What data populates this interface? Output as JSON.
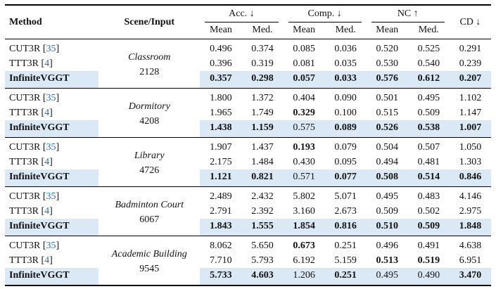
{
  "header": {
    "method": "Method",
    "scene": "Scene/Input",
    "acc": "Acc. ↓",
    "comp": "Comp. ↓",
    "nc": "NC ↑",
    "cd": "CD ↓",
    "mean": "Mean",
    "med": "Med."
  },
  "colors": {
    "highlight": "#dbe9f7",
    "citation": "#2f6eb3"
  },
  "groups": [
    {
      "scene": "Classroom",
      "input": "2128",
      "rows": [
        {
          "method": "CUT3R",
          "cite": "35",
          "bold_method": false,
          "highlight": false,
          "values": [
            "0.496",
            "0.374",
            "0.085",
            "0.036",
            "0.520",
            "0.525",
            "0.291"
          ],
          "bold": [
            false,
            false,
            false,
            false,
            false,
            false,
            false
          ]
        },
        {
          "method": "TTT3R",
          "cite": "4",
          "bold_method": false,
          "highlight": false,
          "values": [
            "0.396",
            "0.319",
            "0.081",
            "0.035",
            "0.530",
            "0.540",
            "0.239"
          ],
          "bold": [
            false,
            false,
            false,
            false,
            false,
            false,
            false
          ]
        },
        {
          "method": "InfiniteVGGT",
          "cite": null,
          "bold_method": true,
          "highlight": true,
          "values": [
            "0.357",
            "0.298",
            "0.057",
            "0.033",
            "0.576",
            "0.612",
            "0.207"
          ],
          "bold": [
            true,
            true,
            true,
            true,
            true,
            true,
            true
          ]
        }
      ]
    },
    {
      "scene": "Dormitory",
      "input": "4208",
      "rows": [
        {
          "method": "CUT3R",
          "cite": "35",
          "bold_method": false,
          "highlight": false,
          "values": [
            "1.800",
            "1.372",
            "0.404",
            "0.090",
            "0.501",
            "0.495",
            "1.102"
          ],
          "bold": [
            false,
            false,
            false,
            false,
            false,
            false,
            false
          ]
        },
        {
          "method": "TTT3R",
          "cite": "4",
          "bold_method": false,
          "highlight": false,
          "values": [
            "1.965",
            "1.749",
            "0.329",
            "0.100",
            "0.515",
            "0.509",
            "1.147"
          ],
          "bold": [
            false,
            false,
            true,
            false,
            false,
            false,
            false
          ]
        },
        {
          "method": "InfiniteVGGT",
          "cite": null,
          "bold_method": true,
          "highlight": true,
          "values": [
            "1.438",
            "1.159",
            "0.575",
            "0.089",
            "0.526",
            "0.538",
            "1.007"
          ],
          "bold": [
            true,
            true,
            false,
            true,
            true,
            true,
            true
          ]
        }
      ]
    },
    {
      "scene": "Library",
      "input": "4726",
      "rows": [
        {
          "method": "CUT3R",
          "cite": "35",
          "bold_method": false,
          "highlight": false,
          "values": [
            "1.907",
            "1.437",
            "0.193",
            "0.079",
            "0.504",
            "0.507",
            "1.050"
          ],
          "bold": [
            false,
            false,
            true,
            false,
            false,
            false,
            false
          ]
        },
        {
          "method": "TTT3R",
          "cite": "4",
          "bold_method": false,
          "highlight": false,
          "values": [
            "2.175",
            "1.484",
            "0.430",
            "0.095",
            "0.494",
            "0.481",
            "1.303"
          ],
          "bold": [
            false,
            false,
            false,
            false,
            false,
            false,
            false
          ]
        },
        {
          "method": "InfiniteVGGT",
          "cite": null,
          "bold_method": true,
          "highlight": true,
          "values": [
            "1.121",
            "0.821",
            "0.571",
            "0.077",
            "0.508",
            "0.514",
            "0.846"
          ],
          "bold": [
            true,
            true,
            false,
            true,
            true,
            true,
            true
          ]
        }
      ]
    },
    {
      "scene": "Badminton Court",
      "input": "6067",
      "rows": [
        {
          "method": "CUT3R",
          "cite": "35",
          "bold_method": false,
          "highlight": false,
          "values": [
            "2.489",
            "2.432",
            "5.802",
            "5.071",
            "0.495",
            "0.483",
            "4.146"
          ],
          "bold": [
            false,
            false,
            false,
            false,
            false,
            false,
            false
          ]
        },
        {
          "method": "TTT3R",
          "cite": "4",
          "bold_method": false,
          "highlight": false,
          "values": [
            "2.791",
            "2.392",
            "3.160",
            "2.673",
            "0.509",
            "0.502",
            "2.975"
          ],
          "bold": [
            false,
            false,
            false,
            false,
            false,
            false,
            false
          ]
        },
        {
          "method": "InfiniteVGGT",
          "cite": null,
          "bold_method": true,
          "highlight": true,
          "values": [
            "1.843",
            "1.555",
            "1.854",
            "0.816",
            "0.510",
            "0.509",
            "1.848"
          ],
          "bold": [
            true,
            true,
            true,
            true,
            true,
            true,
            true
          ]
        }
      ]
    },
    {
      "scene": "Academic Building",
      "input": "9545",
      "rows": [
        {
          "method": "CUT3R",
          "cite": "35",
          "bold_method": false,
          "highlight": false,
          "values": [
            "8.062",
            "5.650",
            "0.673",
            "0.251",
            "0.496",
            "0.491",
            "4.638"
          ],
          "bold": [
            false,
            false,
            true,
            false,
            false,
            false,
            false
          ]
        },
        {
          "method": "TTT3R",
          "cite": "4",
          "bold_method": false,
          "highlight": false,
          "values": [
            "7.710",
            "5.793",
            "6.192",
            "5.159",
            "0.513",
            "0.519",
            "6.951"
          ],
          "bold": [
            false,
            false,
            false,
            false,
            true,
            true,
            false
          ]
        },
        {
          "method": "InfiniteVGGT",
          "cite": null,
          "bold_method": true,
          "highlight": true,
          "values": [
            "5.733",
            "4.603",
            "1.206",
            "0.251",
            "0.495",
            "0.490",
            "3.470"
          ],
          "bold": [
            true,
            true,
            false,
            true,
            false,
            false,
            true
          ]
        }
      ]
    }
  ]
}
